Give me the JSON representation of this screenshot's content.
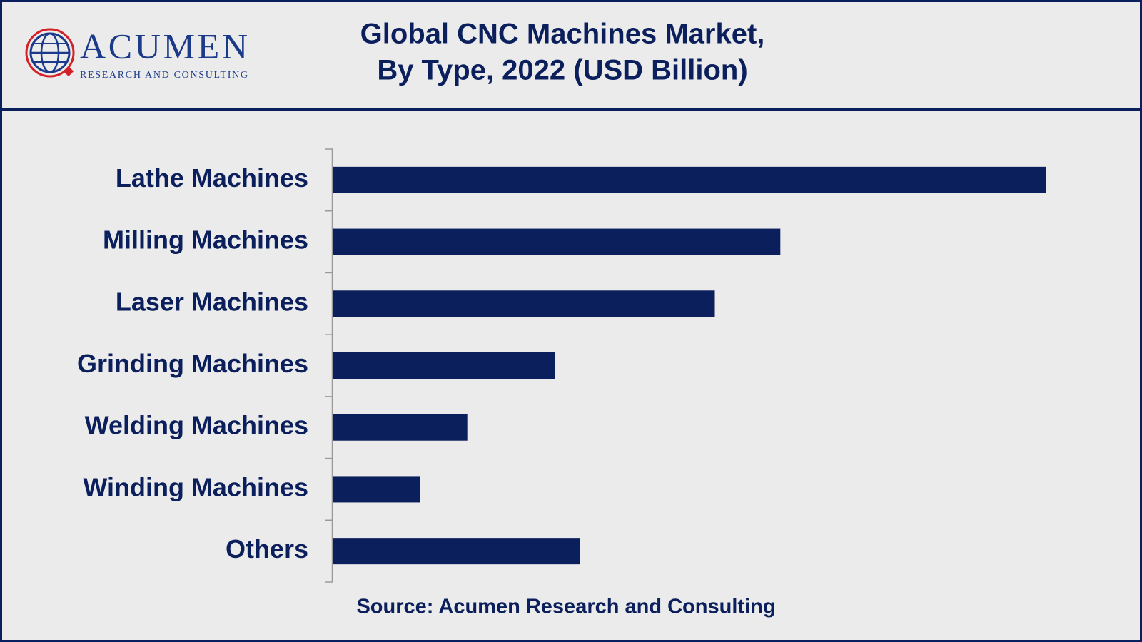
{
  "header": {
    "logo": "ACUMEN",
    "tagline": "RESEARCH AND CONSULTING"
  },
  "chart_data": {
    "type": "bar",
    "orientation": "horizontal",
    "title": [
      "Global CNC Machines Market,",
      "By Type, 2022 (USD Billion)"
    ],
    "categories": [
      "Lathe Machines",
      "Milling Machines",
      "Laser Machines",
      "Grinding Machines",
      "Welding Machines",
      "Winding Machines",
      "Others"
    ],
    "values": [
      19.6,
      12.3,
      10.5,
      6.1,
      3.7,
      2.4,
      6.8
    ],
    "color": "#0b1f5c",
    "xlim": [
      0,
      20
    ],
    "source": "Source: Acumen Research and Consulting"
  }
}
